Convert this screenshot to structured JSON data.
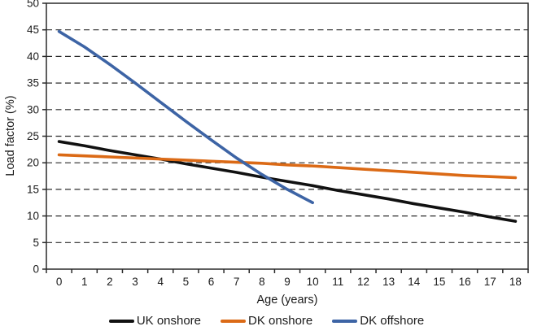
{
  "chart_data": {
    "type": "line",
    "title": "",
    "xlabel": "Age (years)",
    "ylabel": "Load factor (%)",
    "x_categories": [
      "0",
      "1",
      "2",
      "3",
      "4",
      "5",
      "6",
      "7",
      "8",
      "9",
      "10",
      "11",
      "12",
      "13",
      "14",
      "15",
      "16",
      "17",
      "18"
    ],
    "ylim": [
      0,
      50
    ],
    "ytick_step": 5,
    "grid": "horizontal-dashed",
    "legend_position": "bottom-center",
    "axis_color": "#2a2a2a",
    "series": [
      {
        "name": "UK onshore",
        "color": "#111111",
        "values": [
          24.0,
          23.2,
          22.3,
          21.5,
          20.7,
          19.8,
          19.0,
          18.2,
          17.3,
          16.5,
          15.7,
          14.8,
          14.0,
          13.2,
          12.3,
          11.5,
          10.7,
          9.8,
          9.0
        ]
      },
      {
        "name": "DK onshore",
        "color": "#DB6A16",
        "values": [
          21.5,
          21.3,
          21.1,
          20.9,
          20.7,
          20.5,
          20.3,
          20.1,
          19.9,
          19.6,
          19.4,
          19.1,
          18.8,
          18.5,
          18.2,
          17.9,
          17.6,
          17.4,
          17.2
        ]
      },
      {
        "name": "DK offshore",
        "color": "#3D64A5",
        "values": [
          44.7,
          41.8,
          38.5,
          35.0,
          31.4,
          27.8,
          24.3,
          20.9,
          17.8,
          15.0,
          12.5,
          null,
          null,
          null,
          null,
          null,
          null,
          null,
          null
        ]
      }
    ]
  }
}
